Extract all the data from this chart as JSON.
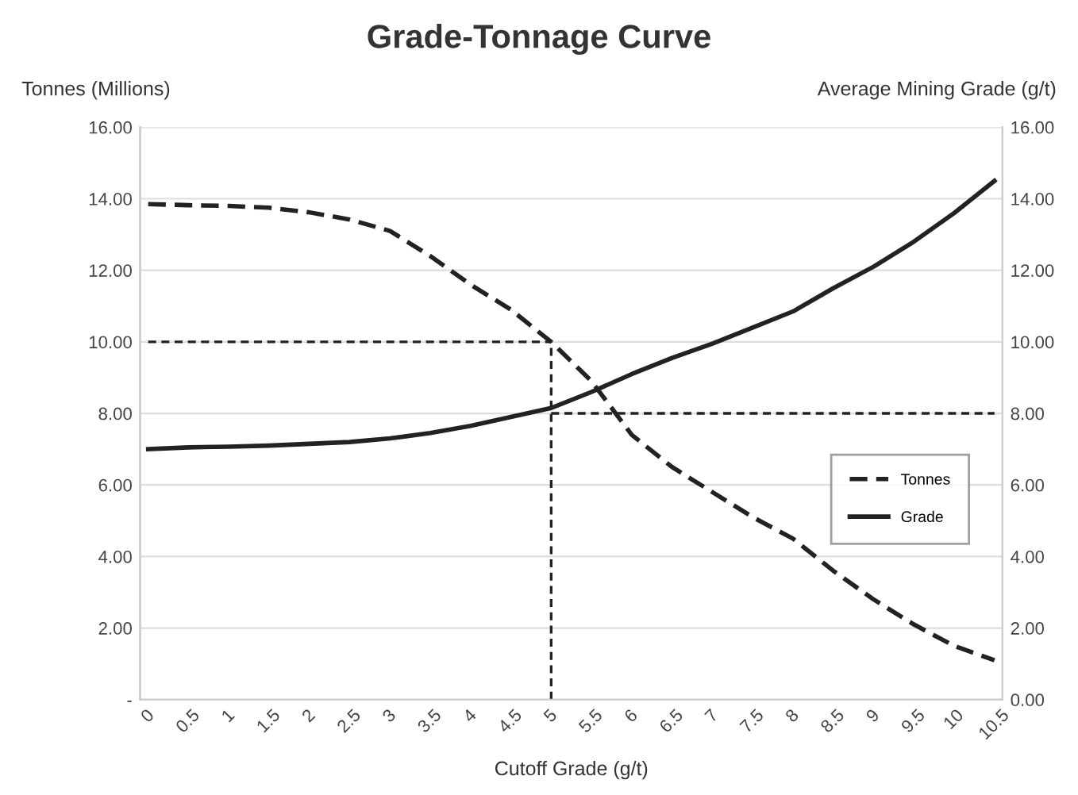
{
  "chart_data": {
    "type": "line",
    "title": "Grade-Tonnage Curve",
    "xlabel": "Cutoff Grade (g/t)",
    "ylabel": "Tonnes (Millions)",
    "y2label": "Average Mining Grade (g/t)",
    "categories": [
      "0",
      "0.5",
      "1",
      "1.5",
      "2",
      "2.5",
      "3",
      "3.5",
      "4",
      "4.5",
      "5",
      "5.5",
      "6",
      "6.5",
      "7",
      "7.5",
      "8",
      "8.5",
      "9",
      "9.5",
      "10",
      "10.5"
    ],
    "series": [
      {
        "name": "Tonnes",
        "color": "#222222",
        "line_style": "dashed",
        "values": [
          13.85,
          13.82,
          13.8,
          13.75,
          13.62,
          13.42,
          13.1,
          12.4,
          11.6,
          10.9,
          10.0,
          8.9,
          7.4,
          6.5,
          5.8,
          5.1,
          4.5,
          3.6,
          2.8,
          2.1,
          1.5,
          1.1
        ]
      },
      {
        "name": "Grade",
        "color": "#222222",
        "line_style": "solid",
        "axis": "y2",
        "values": [
          7.0,
          7.05,
          7.07,
          7.1,
          7.15,
          7.2,
          7.3,
          7.45,
          7.65,
          7.9,
          8.15,
          8.6,
          9.1,
          9.55,
          9.95,
          10.4,
          10.85,
          11.5,
          12.1,
          12.8,
          13.6,
          14.5
        ]
      },
      {
        "color": "#222222",
        "line_style": "dotted",
        "x": [
          "0",
          "5"
        ],
        "values": [
          10,
          10
        ]
      },
      {
        "color": "#222222",
        "line_style": "dotted",
        "x": [
          "5",
          "5"
        ],
        "values": [
          0,
          10
        ]
      },
      {
        "color": "#222222",
        "line_style": "dotted",
        "axis": "y2",
        "x": [
          "5",
          "10.5"
        ],
        "values": [
          8,
          8
        ]
      }
    ],
    "ylim": [
      0,
      16
    ],
    "yticks": [
      {
        "value": 0,
        "label": "-"
      },
      {
        "value": 2,
        "label": "2.00"
      },
      {
        "value": 4,
        "label": "4.00"
      },
      {
        "value": 6,
        "label": "6.00"
      },
      {
        "value": 8,
        "label": "8.00"
      },
      {
        "value": 10,
        "label": "10.00"
      },
      {
        "value": 12,
        "label": "12.00"
      },
      {
        "value": 14,
        "label": "14.00"
      },
      {
        "value": 16,
        "label": "16.00"
      }
    ],
    "y2lim": [
      0,
      16
    ],
    "y2ticks": [
      {
        "value": 0,
        "label": "0.00"
      },
      {
        "value": 2,
        "label": "2.00"
      },
      {
        "value": 4,
        "label": "4.00"
      },
      {
        "value": 6,
        "label": "6.00"
      },
      {
        "value": 8,
        "label": "8.00"
      },
      {
        "value": 10,
        "label": "10.00"
      },
      {
        "value": 12,
        "label": "12.00"
      },
      {
        "value": 14,
        "label": "14.00"
      },
      {
        "value": 16,
        "label": "16.00"
      }
    ],
    "grid": "y",
    "legend": "right"
  }
}
